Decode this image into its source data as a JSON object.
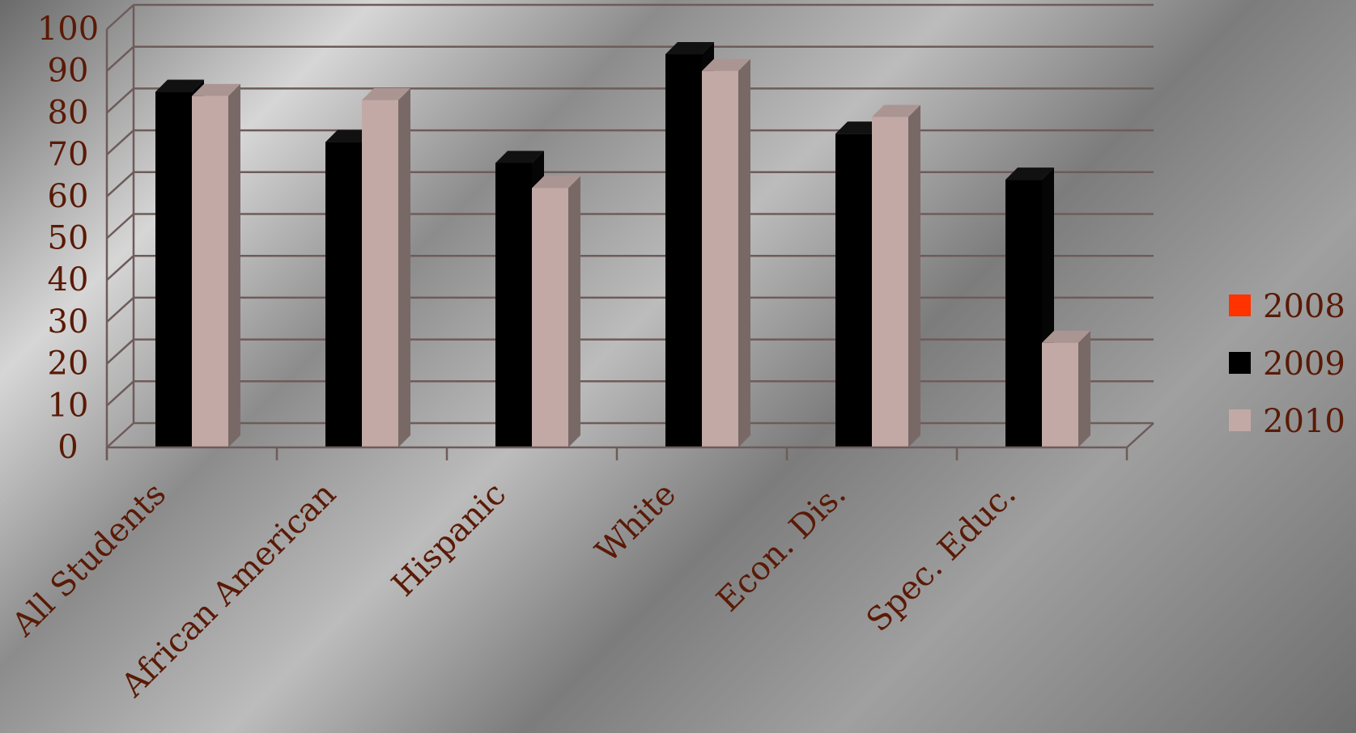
{
  "chart_data": {
    "type": "bar",
    "categories": [
      "All Students",
      "African American",
      "Hispanic",
      "White",
      "Econ. Dis.",
      "Spec. Educ."
    ],
    "series": [
      {
        "name": "2008",
        "color": "#ff3300",
        "values": [
          0,
          0,
          0,
          0,
          0,
          0
        ]
      },
      {
        "name": "2009",
        "color": "#000000",
        "values": [
          85,
          73,
          68,
          94,
          75,
          64
        ]
      },
      {
        "name": "2010",
        "color": "#c2a9a6",
        "values": [
          84,
          83,
          62,
          90,
          79,
          25
        ]
      }
    ],
    "ylim": [
      0,
      100
    ],
    "yticks": [
      "0",
      "10",
      "20",
      "30",
      "40",
      "50",
      "60",
      "70",
      "80",
      "90",
      "100"
    ],
    "legend_position": "right",
    "grid": true,
    "label_color": "#5a1a06"
  }
}
